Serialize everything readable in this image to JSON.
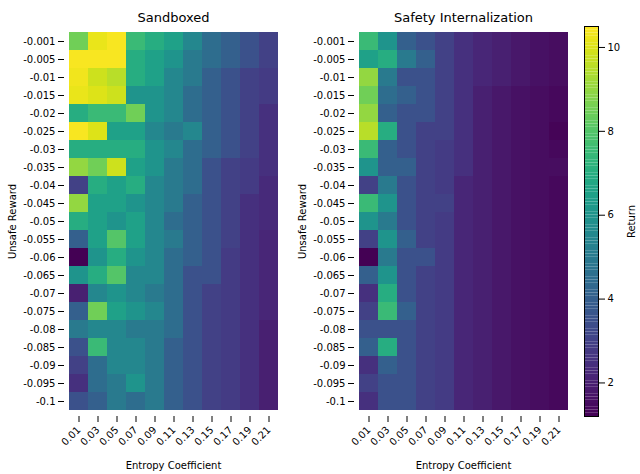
{
  "chart_data": [
    {
      "type": "heatmap",
      "title": "Sandboxed",
      "x_label": "Entropy Coefficient",
      "y_label": "Unsafe Reward",
      "x": [
        0.01,
        0.03,
        0.05,
        0.07,
        0.09,
        0.11,
        0.13,
        0.15,
        0.17,
        0.19,
        0.21
      ],
      "y": [
        -0.001,
        -0.005,
        -0.01,
        -0.015,
        -0.02,
        -0.025,
        -0.03,
        -0.035,
        -0.04,
        -0.045,
        -0.05,
        -0.055,
        -0.06,
        -0.065,
        -0.07,
        -0.075,
        -0.08,
        -0.085,
        -0.09,
        -0.095,
        -0.1
      ],
      "values": [
        [
          8.5,
          10.2,
          10.4,
          7.5,
          7,
          6.5,
          5.5,
          4.5,
          4,
          3.5,
          3
        ],
        [
          10.4,
          10.4,
          10.4,
          7,
          6.5,
          6,
          5,
          4.5,
          4,
          3.5,
          3
        ],
        [
          10.3,
          9.8,
          9.5,
          7,
          6.5,
          5.5,
          5,
          4,
          3.5,
          3,
          2.8
        ],
        [
          10.2,
          10,
          9.8,
          6,
          6,
          5.5,
          4.5,
          4,
          3.5,
          3,
          2.8
        ],
        [
          7,
          7.5,
          7.5,
          8.5,
          6,
          5.5,
          4.5,
          4,
          3.5,
          3,
          2.5
        ],
        [
          10.4,
          10,
          6.5,
          6.5,
          5.5,
          5,
          5.5,
          4,
          3.5,
          3,
          2.5
        ],
        [
          7,
          7,
          7,
          7,
          6,
          5.5,
          4.5,
          4,
          3.5,
          3,
          2.5
        ],
        [
          9,
          8.5,
          9.8,
          6.5,
          6,
          5,
          4.5,
          3.5,
          3,
          2.8,
          2.5
        ],
        [
          3,
          7,
          6.5,
          7,
          5.5,
          5,
          4.5,
          3.5,
          3,
          2.8,
          2.3
        ],
        [
          9,
          6.5,
          6.5,
          6,
          5.5,
          5,
          4,
          3.5,
          3,
          2.5,
          2.3
        ],
        [
          7,
          6.5,
          6,
          6.5,
          5.5,
          4.5,
          4,
          3.5,
          3,
          2.5,
          2.3
        ],
        [
          4,
          6.5,
          8,
          6.5,
          5.5,
          5,
          4,
          3.5,
          3,
          2.5,
          2.2
        ],
        [
          1.2,
          6,
          7,
          6,
          5.5,
          4.5,
          4,
          3.5,
          2.8,
          2.5,
          2.2
        ],
        [
          6,
          7,
          8,
          5.5,
          5.5,
          4.5,
          3.5,
          3.5,
          2.8,
          2.5,
          2.2
        ],
        [
          2,
          5.5,
          6,
          5.5,
          5,
          4.5,
          3.5,
          3,
          2.8,
          2.5,
          2.2
        ],
        [
          4,
          8.5,
          6.5,
          6,
          5.5,
          4.5,
          3.5,
          3,
          2.8,
          2.5,
          2.2
        ],
        [
          5,
          5.5,
          5.5,
          5,
          5,
          4.5,
          3.5,
          3,
          2.8,
          2.5,
          2
        ],
        [
          3.5,
          7.5,
          5.5,
          5.5,
          5,
          4,
          3.5,
          3,
          2.8,
          2.5,
          2
        ],
        [
          3,
          4.5,
          5.5,
          5.5,
          5,
          4,
          3.5,
          3,
          2.8,
          2.5,
          2
        ],
        [
          2.5,
          4.5,
          5,
          6,
          5,
          4,
          3.5,
          3,
          2.8,
          2.5,
          2
        ],
        [
          3.5,
          4,
          5,
          4.5,
          5,
          4,
          3.5,
          3,
          2.8,
          2.5,
          2
        ]
      ]
    },
    {
      "type": "heatmap",
      "title": "Safety Internalization",
      "x_label": "Entropy Coefficient",
      "y_label": "Unsafe Reward",
      "x": [
        0.01,
        0.03,
        0.05,
        0.07,
        0.09,
        0.11,
        0.13,
        0.15,
        0.17,
        0.19,
        0.21
      ],
      "y": [
        -0.001,
        -0.005,
        -0.01,
        -0.015,
        -0.02,
        -0.025,
        -0.03,
        -0.035,
        -0.04,
        -0.045,
        -0.05,
        -0.055,
        -0.06,
        -0.065,
        -0.07,
        -0.075,
        -0.08,
        -0.085,
        -0.09,
        -0.095,
        -0.1
      ],
      "values": [
        [
          7.5,
          6,
          4,
          3.5,
          3,
          2.5,
          2.2,
          2,
          1.8,
          1.6,
          1.5
        ],
        [
          6.5,
          7,
          5,
          4,
          3,
          2.5,
          2.2,
          2,
          1.8,
          1.6,
          1.5
        ],
        [
          9,
          5,
          3.5,
          3.5,
          3,
          2.5,
          2.2,
          2,
          1.8,
          1.6,
          1.5
        ],
        [
          8.5,
          4.5,
          4,
          3.5,
          3,
          2.5,
          2,
          1.8,
          1.6,
          1.5,
          1.4
        ],
        [
          9,
          4,
          3.5,
          3.5,
          3,
          2.5,
          2,
          1.8,
          1.6,
          1.5,
          1.4
        ],
        [
          9.5,
          7,
          3.5,
          3,
          3,
          2.5,
          2,
          1.8,
          1.6,
          1.5,
          1.3
        ],
        [
          7.5,
          4,
          3.5,
          3,
          2.8,
          2.5,
          2,
          1.8,
          1.6,
          1.5,
          1.4
        ],
        [
          6,
          4,
          4,
          3,
          2.8,
          2.5,
          2,
          1.8,
          1.6,
          1.5,
          1.5
        ],
        [
          3,
          5,
          3.5,
          3,
          2.8,
          2.2,
          2,
          1.8,
          1.6,
          1.5,
          1.4
        ],
        [
          7.5,
          6,
          3.5,
          3,
          3,
          2.2,
          2,
          1.8,
          1.6,
          1.5,
          1.4
        ],
        [
          6,
          5,
          3.5,
          3,
          2.8,
          2.2,
          2,
          1.8,
          1.6,
          1.5,
          1.4
        ],
        [
          3,
          6,
          4,
          3,
          2.8,
          2.2,
          2,
          1.8,
          1.6,
          1.5,
          1.4
        ],
        [
          1.2,
          5,
          3.5,
          3.5,
          2.8,
          2.2,
          2,
          1.8,
          1.6,
          1.5,
          1.4
        ],
        [
          4,
          6,
          3.5,
          3,
          2.8,
          2.2,
          2,
          1.8,
          1.6,
          1.5,
          1.4
        ],
        [
          2.5,
          7,
          3.5,
          3,
          2.8,
          2.2,
          2,
          1.8,
          1.6,
          1.5,
          1.4
        ],
        [
          3,
          7.5,
          4,
          3,
          2.8,
          2.2,
          2,
          1.8,
          1.6,
          1.5,
          1.4
        ],
        [
          3.5,
          3.5,
          3.5,
          3,
          2.8,
          2.2,
          2,
          1.8,
          1.6,
          1.5,
          1.4
        ],
        [
          4,
          7,
          3.5,
          3,
          2.8,
          2.2,
          2,
          1.8,
          1.6,
          1.5,
          1.4
        ],
        [
          2.5,
          4,
          3.5,
          3,
          2.8,
          2.2,
          2,
          1.8,
          1.6,
          1.5,
          1.4
        ],
        [
          3,
          3.5,
          3.5,
          3,
          2.8,
          2.2,
          2,
          1.8,
          1.6,
          1.5,
          1.4
        ],
        [
          2.5,
          3.5,
          3.5,
          3,
          2.8,
          2.2,
          2,
          1.8,
          1.6,
          1.5,
          1.4
        ]
      ],
      "colorbar": {
        "label": "Return",
        "range": [
          1.2,
          10.5
        ],
        "ticks": [
          2,
          4,
          6,
          8,
          10
        ]
      }
    }
  ]
}
